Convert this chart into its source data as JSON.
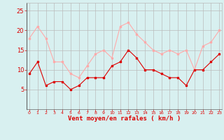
{
  "hours": [
    0,
    1,
    2,
    3,
    4,
    5,
    6,
    7,
    8,
    9,
    10,
    11,
    12,
    13,
    14,
    15,
    16,
    17,
    18,
    19,
    20,
    21,
    22,
    23
  ],
  "wind_avg": [
    9,
    12,
    6,
    7,
    7,
    5,
    6,
    8,
    8,
    8,
    11,
    12,
    15,
    13,
    10,
    10,
    9,
    8,
    8,
    6,
    10,
    10,
    12,
    14
  ],
  "wind_gust": [
    18,
    21,
    18,
    12,
    12,
    9,
    8,
    11,
    14,
    15,
    13,
    21,
    22,
    19,
    17,
    15,
    14,
    15,
    14,
    15,
    10,
    16,
    17,
    20
  ],
  "avg_color": "#dd0000",
  "gust_color": "#ffaaaa",
  "background_color": "#d8f0f0",
  "grid_color": "#bbbbbb",
  "xlabel": "Vent moyen/en rafales ( km/h )",
  "xlabel_color": "#dd0000",
  "tick_color": "#dd0000",
  "ylim": [
    0,
    27
  ],
  "yticks": [
    5,
    10,
    15,
    20,
    25
  ],
  "markersize": 2.0,
  "linewidth": 0.8
}
